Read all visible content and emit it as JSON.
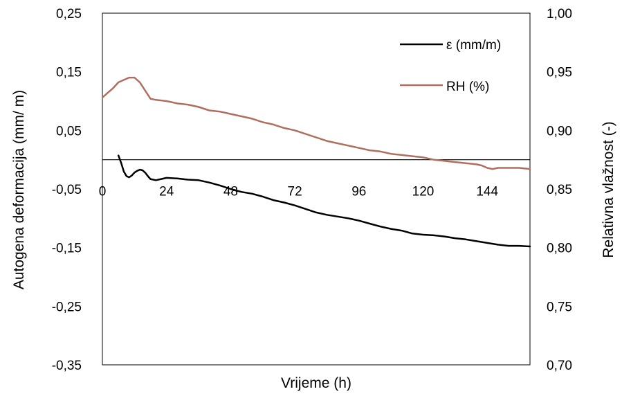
{
  "chart_data": {
    "type": "line",
    "title": "",
    "xlabel": "Vrijeme (h)",
    "ylabel_left": "Autogena deformacija (mm/ m)",
    "ylabel_right": "Relativna vlažnost (-)",
    "xlim": [
      0,
      160
    ],
    "ylim_left": [
      -0.35,
      0.25
    ],
    "ylim_right": [
      0.7,
      1.0
    ],
    "x_ticks": [
      "0",
      "24",
      "48",
      "72",
      "96",
      "120",
      "144"
    ],
    "x_tick_values": [
      0,
      24,
      48,
      72,
      96,
      120,
      144
    ],
    "y_left_ticks": [
      "0,25",
      "0,15",
      "0,05",
      "-0,05",
      "-0,15",
      "-0,25",
      "-0,35"
    ],
    "y_left_tick_values": [
      0.25,
      0.15,
      0.05,
      -0.05,
      -0.15,
      -0.25,
      -0.35
    ],
    "y_right_ticks": [
      "1,00",
      "0,95",
      "0,90",
      "0,85",
      "0,80",
      "0,75",
      "0,70"
    ],
    "y_right_tick_values": [
      1.0,
      0.95,
      0.9,
      0.85,
      0.8,
      0.75,
      0.7
    ],
    "grid": false,
    "legend_position": "top-right",
    "series": [
      {
        "name": "ε (mm/m)",
        "axis": "left",
        "color": "#000000",
        "points": [
          [
            6,
            0.007
          ],
          [
            7,
            -0.005
          ],
          [
            8,
            -0.02
          ],
          [
            9,
            -0.028
          ],
          [
            10,
            -0.03
          ],
          [
            11,
            -0.027
          ],
          [
            12,
            -0.022
          ],
          [
            13,
            -0.019
          ],
          [
            14,
            -0.017
          ],
          [
            15,
            -0.018
          ],
          [
            16,
            -0.022
          ],
          [
            17,
            -0.028
          ],
          [
            18,
            -0.033
          ],
          [
            20,
            -0.035
          ],
          [
            22,
            -0.033
          ],
          [
            24,
            -0.031
          ],
          [
            28,
            -0.032
          ],
          [
            32,
            -0.034
          ],
          [
            36,
            -0.035
          ],
          [
            40,
            -0.039
          ],
          [
            44,
            -0.044
          ],
          [
            48,
            -0.05
          ],
          [
            52,
            -0.055
          ],
          [
            56,
            -0.058
          ],
          [
            60,
            -0.063
          ],
          [
            64,
            -0.069
          ],
          [
            68,
            -0.073
          ],
          [
            72,
            -0.078
          ],
          [
            76,
            -0.084
          ],
          [
            80,
            -0.09
          ],
          [
            84,
            -0.094
          ],
          [
            88,
            -0.097
          ],
          [
            92,
            -0.1
          ],
          [
            96,
            -0.104
          ],
          [
            100,
            -0.109
          ],
          [
            104,
            -0.114
          ],
          [
            108,
            -0.118
          ],
          [
            112,
            -0.121
          ],
          [
            116,
            -0.126
          ],
          [
            120,
            -0.128
          ],
          [
            124,
            -0.129
          ],
          [
            128,
            -0.131
          ],
          [
            132,
            -0.134
          ],
          [
            136,
            -0.136
          ],
          [
            140,
            -0.139
          ],
          [
            144,
            -0.142
          ],
          [
            148,
            -0.145
          ],
          [
            152,
            -0.147
          ],
          [
            156,
            -0.147
          ],
          [
            160,
            -0.148
          ]
        ]
      },
      {
        "name": "RH (%)",
        "axis": "right",
        "color": "#b06f5e",
        "points": [
          [
            0,
            0.928
          ],
          [
            2,
            0.932
          ],
          [
            4,
            0.936
          ],
          [
            6,
            0.941
          ],
          [
            8,
            0.943
          ],
          [
            10,
            0.945
          ],
          [
            12,
            0.945
          ],
          [
            14,
            0.941
          ],
          [
            16,
            0.934
          ],
          [
            18,
            0.927
          ],
          [
            20,
            0.926
          ],
          [
            24,
            0.925
          ],
          [
            28,
            0.923
          ],
          [
            32,
            0.922
          ],
          [
            36,
            0.92
          ],
          [
            40,
            0.917
          ],
          [
            44,
            0.916
          ],
          [
            48,
            0.914
          ],
          [
            52,
            0.912
          ],
          [
            56,
            0.91
          ],
          [
            60,
            0.907
          ],
          [
            64,
            0.905
          ],
          [
            68,
            0.902
          ],
          [
            72,
            0.9
          ],
          [
            76,
            0.897
          ],
          [
            80,
            0.894
          ],
          [
            84,
            0.891
          ],
          [
            88,
            0.889
          ],
          [
            92,
            0.887
          ],
          [
            96,
            0.885
          ],
          [
            100,
            0.883
          ],
          [
            104,
            0.882
          ],
          [
            108,
            0.88
          ],
          [
            112,
            0.879
          ],
          [
            116,
            0.878
          ],
          [
            120,
            0.877
          ],
          [
            124,
            0.875
          ],
          [
            128,
            0.874
          ],
          [
            132,
            0.873
          ],
          [
            136,
            0.872
          ],
          [
            140,
            0.871
          ],
          [
            142,
            0.87
          ],
          [
            144,
            0.868
          ],
          [
            146,
            0.867
          ],
          [
            148,
            0.868
          ],
          [
            152,
            0.868
          ],
          [
            156,
            0.868
          ],
          [
            160,
            0.867
          ]
        ]
      }
    ]
  }
}
